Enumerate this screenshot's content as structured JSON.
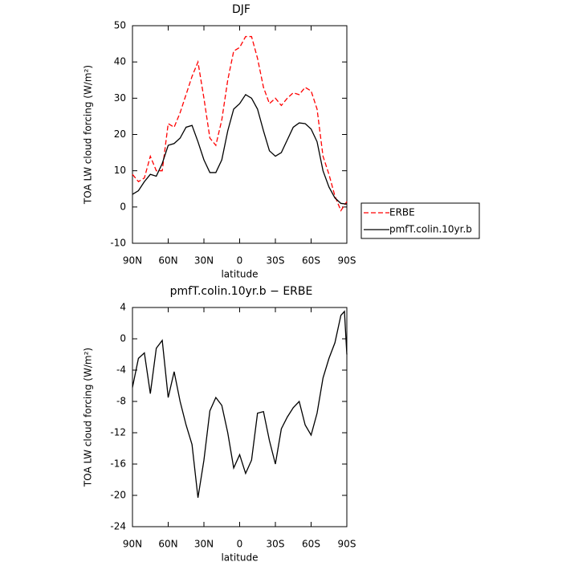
{
  "chart_data": [
    {
      "type": "line",
      "title": "DJF",
      "x_label": "latitude",
      "y_label": "TOA LW cloud forcing (W/m²)",
      "x": [
        90,
        85,
        80,
        75,
        70,
        65,
        60,
        55,
        50,
        45,
        40,
        35,
        30,
        25,
        20,
        15,
        10,
        5,
        0,
        -5,
        -10,
        -15,
        -20,
        -25,
        -30,
        -35,
        -40,
        -45,
        -50,
        -55,
        -60,
        -65,
        -70,
        -75,
        -80,
        -85,
        -90
      ],
      "series": [
        {
          "name": "ERBE",
          "color": "#ff0000",
          "style": "dashed",
          "values": [
            9,
            7,
            8,
            14,
            10,
            10,
            23,
            22,
            26,
            31,
            36,
            40,
            30,
            19,
            17,
            24,
            35,
            43,
            44,
            47,
            47,
            41,
            33,
            28.5,
            30,
            28,
            30,
            31.5,
            31,
            33,
            32,
            27,
            14,
            9,
            3,
            -1,
            1.5
          ]
        },
        {
          "name": "pmfT.colin.10yr.b",
          "color": "#000000",
          "style": "solid",
          "values": [
            3.5,
            4.5,
            7,
            9,
            8.5,
            12,
            17,
            17.5,
            19,
            22,
            22.5,
            18,
            13,
            9.5,
            9.5,
            13,
            21,
            27,
            28.5,
            31,
            30,
            27,
            21,
            15.5,
            14,
            15,
            18.5,
            22,
            23.2,
            23,
            21.5,
            18,
            10,
            5.5,
            2.5,
            1,
            0.8
          ]
        }
      ],
      "xlim": [
        90,
        -90
      ],
      "xticks": [
        {
          "value": 90,
          "label": "90N"
        },
        {
          "value": 60,
          "label": "60N"
        },
        {
          "value": 30,
          "label": "30N"
        },
        0,
        {
          "value": -30,
          "label": "30S"
        },
        {
          "value": -60,
          "label": "60S"
        },
        {
          "value": -90,
          "label": "90S"
        }
      ],
      "ylim": [
        -10,
        50
      ],
      "yticks": [
        -10,
        0,
        10,
        20,
        30,
        40,
        50
      ],
      "legend": "outside right"
    },
    {
      "type": "line",
      "title": "pmfT.colin.10yr.b − ERBE",
      "x_label": "latitude",
      "y_label": "TOA LW cloud forcing (W/m²)",
      "x": [
        90,
        85,
        80,
        75,
        70,
        65,
        60,
        55,
        50,
        45,
        40,
        35,
        30,
        25,
        20,
        15,
        10,
        5,
        0,
        -5,
        -10,
        -15,
        -20,
        -25,
        -30,
        -35,
        -40,
        -45,
        -50,
        -55,
        -60,
        -65,
        -70,
        -75,
        -80,
        -85,
        -88,
        -90
      ],
      "color": "#000000",
      "values": [
        -6.2,
        -2.5,
        -1.8,
        -7,
        -1.2,
        -0.2,
        -7.5,
        -4.2,
        -8,
        -11,
        -13.5,
        -20.3,
        -15.5,
        -9.2,
        -7.5,
        -8.5,
        -12,
        -16.5,
        -14.8,
        -17.2,
        -15.5,
        -9.5,
        -9.3,
        -13,
        -16,
        -11.5,
        -10,
        -8.8,
        -8,
        -11,
        -12.3,
        -9.5,
        -5,
        -2.5,
        -0.5,
        3,
        3.5,
        -2
      ],
      "xlim": [
        90,
        -90
      ],
      "xticks": [
        {
          "value": 90,
          "label": "90N"
        },
        {
          "value": 60,
          "label": "60N"
        },
        {
          "value": 30,
          "label": "30N"
        },
        0,
        {
          "value": -30,
          "label": "30S"
        },
        {
          "value": -60,
          "label": "60S"
        },
        {
          "value": -90,
          "label": "90S"
        }
      ],
      "ylim": [
        -24,
        4
      ],
      "yticks": [
        -24,
        -20,
        -16,
        -12,
        -8,
        -4,
        0,
        4
      ]
    }
  ]
}
